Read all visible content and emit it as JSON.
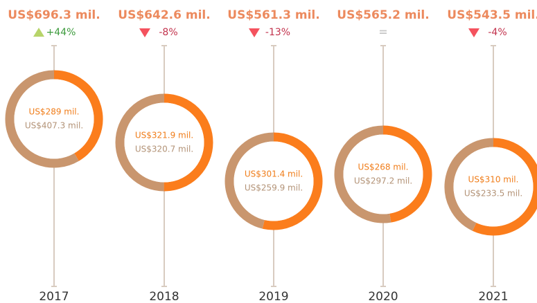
{
  "chart_data": {
    "type": "donut",
    "categories": [
      "2017",
      "2018",
      "2019",
      "2020",
      "2021"
    ],
    "totals": [
      696.3,
      642.6,
      561.3,
      565.2,
      543.5
    ],
    "total_labels": [
      "US$696.3 mil.",
      "US$642.6 mil.",
      "US$561.3 mil.",
      "US$565.2 mil.",
      "US$543.5 mil."
    ],
    "changes": [
      44,
      -8,
      -13,
      0,
      -4
    ],
    "change_labels": [
      "+44%",
      "-8%",
      "-13%",
      "=",
      "-4%"
    ],
    "series": [
      {
        "color": "#fb7d1c",
        "values": [
          289,
          321.9,
          301.4,
          268,
          310
        ],
        "value_labels": [
          "US$289 mil.",
          "US$321.9 mil.",
          "US$301.4 mil.",
          "US$268 mil.",
          "US$310 mil."
        ]
      },
      {
        "color": "#c9966e",
        "values": [
          407.3,
          320.7,
          259.9,
          297.2,
          233.5
        ],
        "value_labels": [
          "US$407.3 mil.",
          "US$320.7 mil.",
          "US$259.9 mil.",
          "US$297.2 mil.",
          "US$233.5 mil."
        ]
      }
    ]
  }
}
